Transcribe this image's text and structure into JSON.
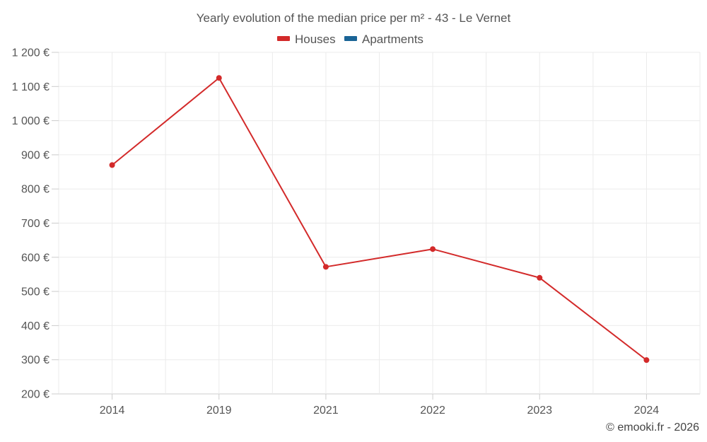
{
  "chart_data": {
    "type": "line",
    "title": "Yearly evolution of the median price per m² - 43 - Le Vernet",
    "categories": [
      "2014",
      "2019",
      "2021",
      "2022",
      "2023",
      "2024"
    ],
    "series": [
      {
        "name": "Houses",
        "color": "#d32a2a",
        "values": [
          870,
          1125,
          572,
          624,
          540,
          299
        ]
      },
      {
        "name": "Apartments",
        "color": "#1a6496",
        "values": [
          null,
          null,
          null,
          null,
          null,
          null
        ]
      }
    ],
    "y_ticks": [
      "200 €",
      "300 €",
      "400 €",
      "500 €",
      "600 €",
      "700 €",
      "800 €",
      "900 €",
      "1 000 €",
      "1 100 €",
      "1 200 €"
    ],
    "ylim": [
      200,
      1200
    ],
    "ystep": 100,
    "xlabel": "",
    "ylabel": "",
    "grid": true,
    "legend_position": "top-center"
  },
  "credit": "© emooki.fr - 2026"
}
